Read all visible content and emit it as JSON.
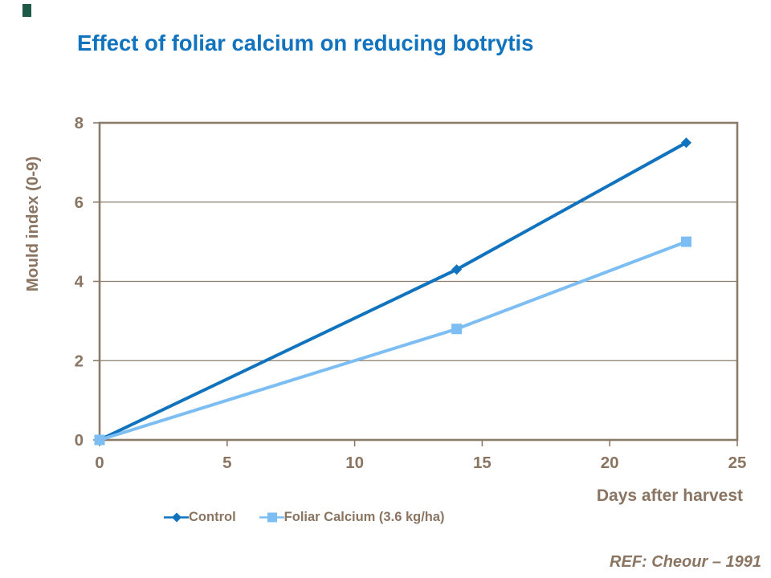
{
  "accent_mark": {
    "color": "#1E5948"
  },
  "title": {
    "text": "Effect of foliar calcium on reducing botrytis",
    "color": "#1173BE"
  },
  "chart_data": {
    "type": "line",
    "title": "Effect of foliar calcium on reducing botrytis",
    "xlabel": "Days after harvest",
    "ylabel": "Mould index (0-9)",
    "xlim": [
      0,
      25
    ],
    "ylim": [
      0,
      8
    ],
    "x_ticks": [
      0,
      5,
      10,
      15,
      20,
      25
    ],
    "y_ticks": [
      0,
      2,
      4,
      6,
      8
    ],
    "grid": true,
    "legend_position": "bottom",
    "axis_color": "#8B7B69",
    "label_color": "#8A7462",
    "series": [
      {
        "name": "Control",
        "color": "#1173BE",
        "marker": "diamond",
        "x": [
          0,
          14,
          23
        ],
        "values": [
          0,
          4.3,
          7.5
        ]
      },
      {
        "name": "Foliar Calcium (3.6 kg/ha)",
        "color": "#7CBEF4",
        "marker": "square",
        "x": [
          0,
          14,
          23
        ],
        "values": [
          0,
          2.8,
          5.0
        ]
      }
    ]
  },
  "footer": {
    "ref": "REF: Cheour – 1991"
  }
}
